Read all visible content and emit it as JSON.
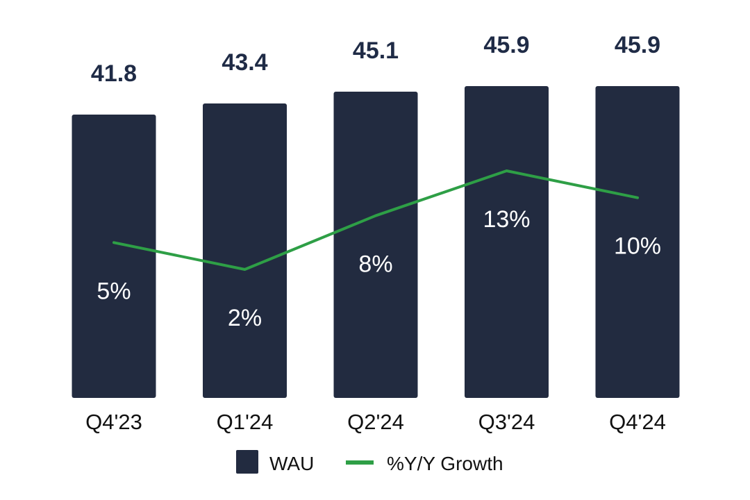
{
  "chart_data": {
    "type": "bar",
    "title": "",
    "xlabel": "",
    "ylabel": "",
    "categories": [
      "Q4'23",
      "Q1'24",
      "Q2'24",
      "Q3'24",
      "Q4'24"
    ],
    "series": [
      {
        "name": "WAU",
        "kind": "bar",
        "values": [
          41.8,
          43.4,
          45.1,
          45.9,
          45.9
        ],
        "labels": [
          "41.8",
          "43.4",
          "45.1",
          "45.9",
          "45.9"
        ],
        "color": "#222b40"
      },
      {
        "name": "%Y/Y Growth",
        "kind": "line",
        "values": [
          5,
          2,
          8,
          13,
          10
        ],
        "labels": [
          "5%",
          "2%",
          "8%",
          "13%",
          "10%"
        ],
        "color": "#2e9f46"
      }
    ],
    "legend": {
      "position": "bottom-center",
      "items": [
        "WAU",
        "%Y/Y Growth"
      ]
    },
    "grid": false
  }
}
